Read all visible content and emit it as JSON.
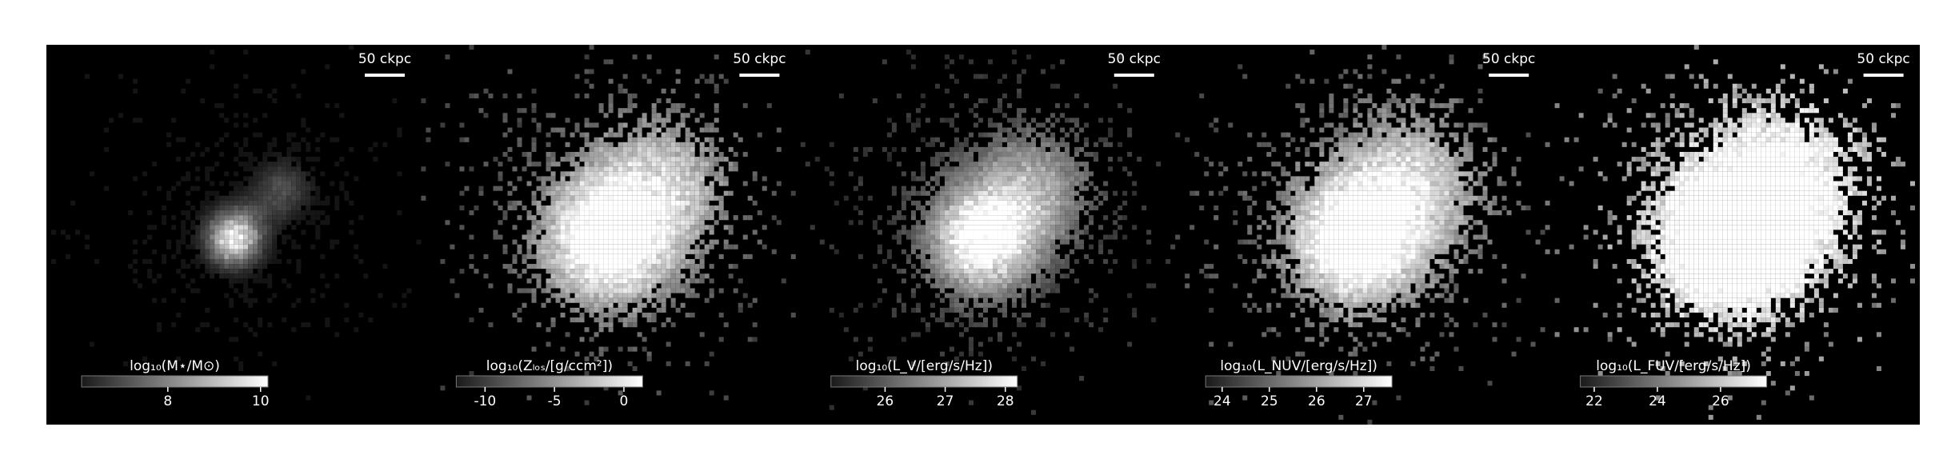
{
  "chart_data": [
    {
      "type": "image",
      "colorbar_label": "log₁₀(M⋆/M⊙)",
      "colorbar_lim": [
        6.14,
        10.16
      ],
      "colorbar_ticks": [
        8,
        10
      ],
      "scalebar_label": "50 ckpc"
    },
    {
      "type": "image",
      "colorbar_label": "log₁₀(Zₗₒₛ/[g/ccm²])",
      "colorbar_lim": [
        -12.07,
        1.35
      ],
      "colorbar_ticks": [
        -10,
        -5,
        0
      ],
      "scalebar_label": "50 ckpc"
    },
    {
      "type": "image",
      "colorbar_label": "log₁₀(L_V/[erg/s/Hz])",
      "colorbar_lim": [
        25.1,
        28.2
      ],
      "colorbar_ticks": [
        26,
        27,
        28
      ],
      "scalebar_label": "50 ckpc"
    },
    {
      "type": "image",
      "colorbar_label": "log₁₀(L_NUV/[erg/s/Hz])",
      "colorbar_lim": [
        23.65,
        27.6
      ],
      "colorbar_ticks": [
        24,
        25,
        26,
        27
      ],
      "scalebar_label": "50 ckpc"
    },
    {
      "type": "image",
      "colorbar_label": "log₁₀(L_FUV/[erg/s/Hz])",
      "colorbar_lim": [
        21.56,
        27.46
      ],
      "colorbar_ticks": [
        22,
        24,
        26
      ],
      "scalebar_label": "50 ckpc"
    }
  ]
}
